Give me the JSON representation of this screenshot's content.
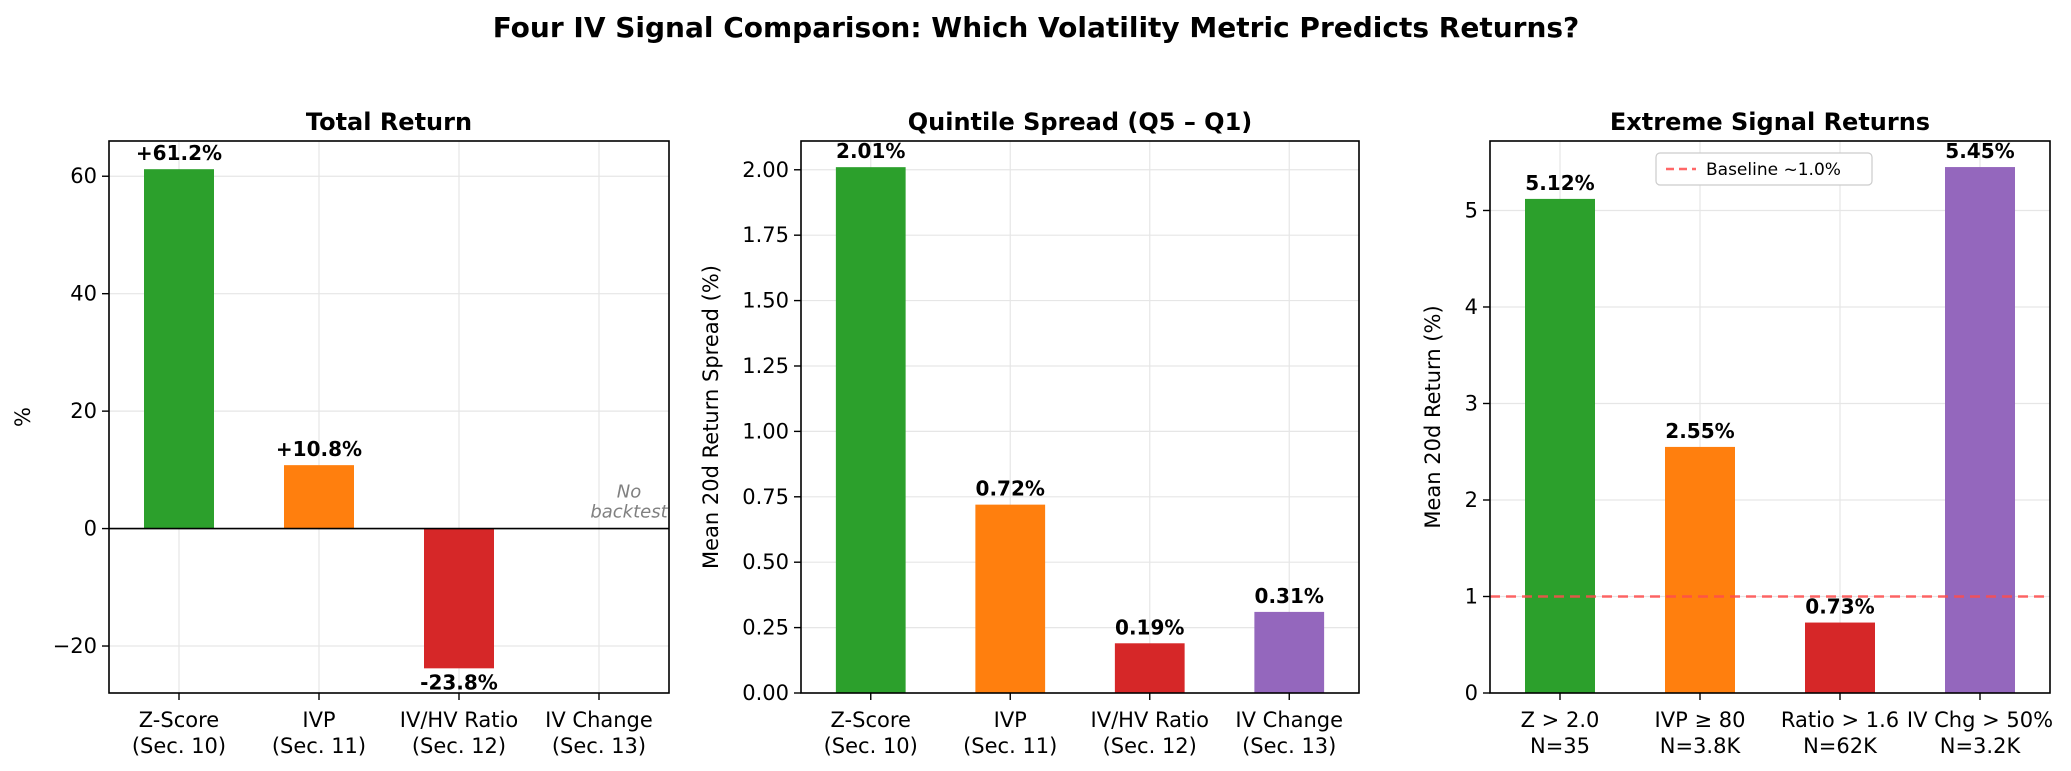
{
  "suptitle": "Four IV Signal Comparison: Which Volatility Metric Predicts Returns?",
  "colors": {
    "green": "#2ca02c",
    "orange": "#ff7f0e",
    "red": "#d62728",
    "purple": "#9467bd",
    "grid": "#e6e6e6",
    "baseline": "#ff4d4d"
  },
  "chart_data": [
    {
      "type": "bar",
      "title": "Total Return",
      "ylabel": "%",
      "ylim": [
        -28,
        66
      ],
      "yticks": [
        -20,
        0,
        20,
        40,
        60
      ],
      "ytick_labels": [
        "−20",
        "0",
        "20",
        "40",
        "60"
      ],
      "categories": [
        "Z-Score (Sec. 10)",
        "IVP (Sec. 11)",
        "IV/HV Ratio (Sec. 12)",
        "IV Change (Sec. 13)"
      ],
      "cat_lines": [
        [
          "Z-Score",
          "(Sec. 10)"
        ],
        [
          "IVP",
          "(Sec. 11)"
        ],
        [
          "IV/HV Ratio",
          "(Sec. 12)"
        ],
        [
          "IV Change",
          "(Sec. 13)"
        ]
      ],
      "values": [
        61.2,
        10.8,
        -23.8,
        null
      ],
      "labels": [
        "+61.2%",
        "+10.8%",
        "-23.8%",
        null
      ],
      "bar_colors": [
        "#2ca02c",
        "#ff7f0e",
        "#d62728",
        "#9467bd"
      ],
      "zero_line": true,
      "annotation": "No\nbacktest"
    },
    {
      "type": "bar",
      "title": "Quintile Spread (Q5 – Q1)",
      "ylabel": "Mean 20d Return Spread (%)",
      "ylim": [
        0,
        2.11
      ],
      "yticks": [
        0,
        0.25,
        0.5,
        0.75,
        1.0,
        1.25,
        1.5,
        1.75,
        2.0
      ],
      "ytick_labels": [
        "0.00",
        "0.25",
        "0.50",
        "0.75",
        "1.00",
        "1.25",
        "1.50",
        "1.75",
        "2.00"
      ],
      "categories": [
        "Z-Score (Sec. 10)",
        "IVP (Sec. 11)",
        "IV/HV Ratio (Sec. 12)",
        "IV Change (Sec. 13)"
      ],
      "cat_lines": [
        [
          "Z-Score",
          "(Sec. 10)"
        ],
        [
          "IVP",
          "(Sec. 11)"
        ],
        [
          "IV/HV Ratio",
          "(Sec. 12)"
        ],
        [
          "IV Change",
          "(Sec. 13)"
        ]
      ],
      "values": [
        2.01,
        0.72,
        0.19,
        0.31
      ],
      "labels": [
        "2.01%",
        "0.72%",
        "0.19%",
        "0.31%"
      ],
      "bar_colors": [
        "#2ca02c",
        "#ff7f0e",
        "#d62728",
        "#9467bd"
      ]
    },
    {
      "type": "bar",
      "title": "Extreme Signal Returns",
      "ylabel": "Mean 20d Return (%)",
      "ylim": [
        0,
        5.72
      ],
      "yticks": [
        0,
        1,
        2,
        3,
        4,
        5
      ],
      "ytick_labels": [
        "0",
        "1",
        "2",
        "3",
        "4",
        "5"
      ],
      "categories": [
        "Z > 2.0 N=35",
        "IVP ≥ 80 N=3.8K",
        "Ratio > 1.6 N=62K",
        "IV Chg > 50% N=3.2K"
      ],
      "cat_lines": [
        [
          "Z > 2.0",
          "N=35"
        ],
        [
          "IVP ≥ 80",
          "N=3.8K"
        ],
        [
          "Ratio > 1.6",
          "N=62K"
        ],
        [
          "IV Chg > 50%",
          "N=3.2K"
        ]
      ],
      "values": [
        5.12,
        2.55,
        0.73,
        5.45
      ],
      "labels": [
        "5.12%",
        "2.55%",
        "0.73%",
        "5.45%"
      ],
      "bar_colors": [
        "#2ca02c",
        "#ff7f0e",
        "#d62728",
        "#9467bd"
      ],
      "baseline": {
        "value": 1.0,
        "label": "Baseline ~1.0%"
      },
      "legend_position": "upper-center"
    }
  ]
}
